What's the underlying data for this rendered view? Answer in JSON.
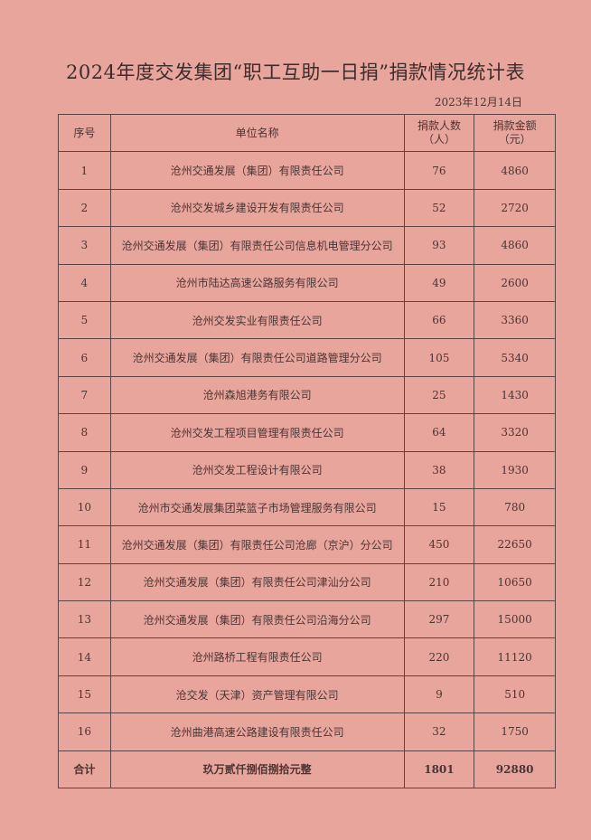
{
  "title": "2024年度交发集团“职工互助一日捐”捐款情况统计表",
  "date": "2023年12月14日",
  "headers": {
    "index": "序号",
    "unit": "单位名称",
    "count_line1": "捐款人数",
    "count_line2": "（人）",
    "amount_line1": "捐款金额",
    "amount_line2": "（元）"
  },
  "rows": [
    {
      "index": "1",
      "unit": "沧州交通发展（集团）有限责任公司",
      "count": "76",
      "amount": "4860"
    },
    {
      "index": "2",
      "unit": "沧州交发城乡建设开发有限责任公司",
      "count": "52",
      "amount": "2720"
    },
    {
      "index": "3",
      "unit": "沧州交通发展（集团）有限责任公司信息机电管理分公司",
      "count": "93",
      "amount": "4860"
    },
    {
      "index": "4",
      "unit": "沧州市陆达高速公路服务有限公司",
      "count": "49",
      "amount": "2600"
    },
    {
      "index": "5",
      "unit": "沧州交发实业有限责任公司",
      "count": "66",
      "amount": "3360"
    },
    {
      "index": "6",
      "unit": "沧州交通发展（集团）有限责任公司道路管理分公司",
      "count": "105",
      "amount": "5340"
    },
    {
      "index": "7",
      "unit": "沧州森旭港务有限公司",
      "count": "25",
      "amount": "1430"
    },
    {
      "index": "8",
      "unit": "沧州交发工程项目管理有限责任公司",
      "count": "64",
      "amount": "3320"
    },
    {
      "index": "9",
      "unit": "沧州交发工程设计有限公司",
      "count": "38",
      "amount": "1930"
    },
    {
      "index": "10",
      "unit": "沧州市交通发展集团菜篮子市场管理服务有限公司",
      "count": "15",
      "amount": "780"
    },
    {
      "index": "11",
      "unit": "沧州交通发展（集团）有限责任公司沧廊（京沪）分公司",
      "count": "450",
      "amount": "22650"
    },
    {
      "index": "12",
      "unit": "沧州交通发展（集团）有限责任公司津汕分公司",
      "count": "210",
      "amount": "10650"
    },
    {
      "index": "13",
      "unit": "沧州交通发展（集团）有限责任公司沿海分公司",
      "count": "297",
      "amount": "15000"
    },
    {
      "index": "14",
      "unit": "沧州路桥工程有限责任公司",
      "count": "220",
      "amount": "11120"
    },
    {
      "index": "15",
      "unit": "沧交发（天津）资产管理有限公司",
      "count": "9",
      "amount": "510"
    },
    {
      "index": "16",
      "unit": "沧州曲港高速公路建设有限责任公司",
      "count": "32",
      "amount": "1750"
    }
  ],
  "total": {
    "label": "合计",
    "amount_words": "玖万贰仟捌佰捌拾元整",
    "count": "1801",
    "amount": "92880"
  }
}
